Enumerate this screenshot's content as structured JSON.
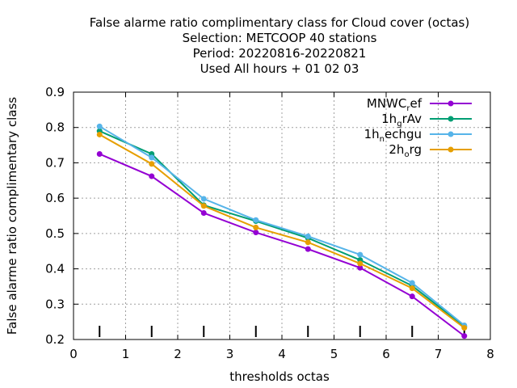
{
  "chart_data": {
    "type": "line",
    "title_lines": [
      "False alarme ratio complimentary class  for Cloud cover (octas)",
      "Selection: METCOOP     40 stations",
      "Period: 20220816-20220821",
      "Used  All hours + 01 02 03"
    ],
    "xlabel": "thresholds octas",
    "ylabel": "False alarme ratio complimentary class",
    "xlim": [
      0,
      8
    ],
    "ylim": [
      0.2,
      0.9
    ],
    "xticks": [
      "0",
      "1",
      "2",
      "3",
      "4",
      "5",
      "6",
      "7",
      "8"
    ],
    "yticks": [
      "0.2",
      "0.3",
      "0.4",
      "0.5",
      "0.6",
      "0.7",
      "0.8",
      "0.9"
    ],
    "grid": true,
    "legend_position": "top-right",
    "x": [
      0.5,
      1.5,
      2.5,
      3.5,
      4.5,
      5.5,
      6.5,
      7.5
    ],
    "series": [
      {
        "name_main": "MNWC",
        "name_sub": "r",
        "name_rest": "ef",
        "color": "#9400d3",
        "values": [
          0.725,
          0.662,
          0.558,
          0.503,
          0.456,
          0.403,
          0.322,
          0.21
        ]
      },
      {
        "name_main": "1h",
        "name_sub": "g",
        "name_rest": "rAv",
        "color": "#009e73",
        "values": [
          0.79,
          0.725,
          0.58,
          0.535,
          0.487,
          0.425,
          0.352,
          0.237
        ]
      },
      {
        "name_main": "1h",
        "name_sub": "n",
        "name_rest": "echgu",
        "color": "#56b4e9",
        "values": [
          0.803,
          0.715,
          0.598,
          0.538,
          0.492,
          0.44,
          0.36,
          0.24
        ]
      },
      {
        "name_main": "2h",
        "name_sub": "o",
        "name_rest": "rg",
        "color": "#e69f00",
        "values": [
          0.78,
          0.697,
          0.578,
          0.517,
          0.475,
          0.415,
          0.345,
          0.233
        ]
      }
    ],
    "markers": {
      "x": [
        0.5,
        1.5,
        2.5,
        3.5,
        4.5,
        5.5,
        6.5,
        7.5
      ]
    }
  }
}
